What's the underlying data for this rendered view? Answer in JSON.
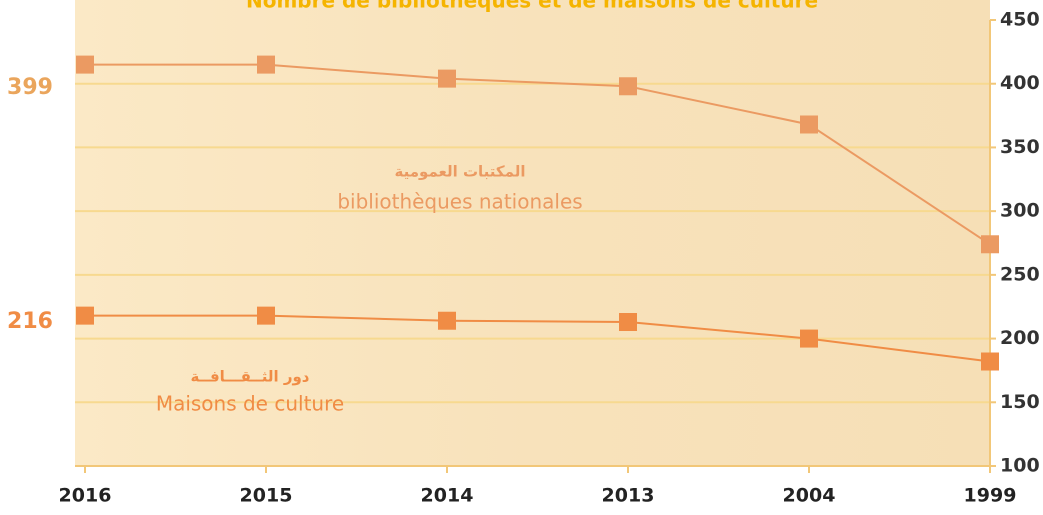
{
  "chart_data": {
    "type": "line",
    "title": "Nombre de bibliothèques et de maisons de culture",
    "categories": [
      "2016",
      "2015",
      "2014",
      "2013",
      "2004",
      "1999"
    ],
    "series": [
      {
        "name": "bibliothèques nationales",
        "name_ar": "المكتبات العمومية",
        "color": "#eb9a62",
        "values": [
          415,
          415,
          404,
          398,
          368,
          274
        ]
      },
      {
        "name": "Maisons de culture",
        "name_ar": "دور الثــقـــافــة",
        "color": "#f08c45",
        "values": [
          218,
          218,
          214,
          213,
          200,
          182
        ]
      }
    ],
    "annotations": [
      "399",
      "216"
    ],
    "ylim": [
      100,
      450
    ],
    "yticks": [
      100,
      150,
      200,
      250,
      300,
      350,
      400,
      450
    ],
    "grid": true,
    "y_axis_side": "right"
  }
}
